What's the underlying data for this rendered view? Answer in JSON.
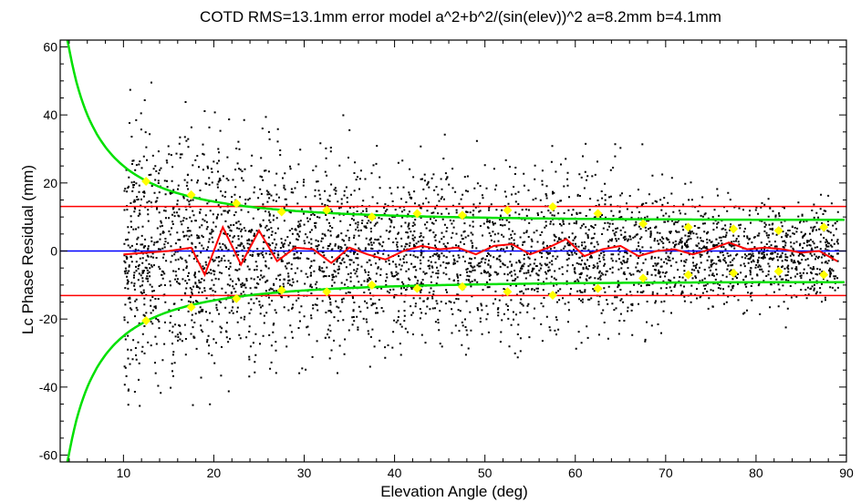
{
  "chart_data": {
    "type": "scatter",
    "title": "COTD RMS=13.1mm error model a^2+b^2/(sin(elev))^2 a=8.2mm b=4.1mm",
    "xlabel": "Elevation Angle (deg)",
    "ylabel": "Lc Phase Residual (mm)",
    "xlim": [
      3,
      90
    ],
    "ylim": [
      -62,
      62
    ],
    "x_ticks": [
      10,
      20,
      30,
      40,
      50,
      60,
      70,
      80,
      90
    ],
    "y_ticks": [
      -60,
      -40,
      -20,
      0,
      20,
      40,
      60
    ],
    "grid": false,
    "rms_mm": 13.1,
    "model": {
      "a_mm": 8.2,
      "b_mm": 4.1
    },
    "colors": {
      "points": "#000000",
      "rms_lines": "#ff0000",
      "zero_line": "#0000ff",
      "envelope": "#00e000",
      "mean_line": "#ff0000",
      "binned_rms": "#ffff00"
    },
    "series": [
      {
        "kind": "horizontal_lines",
        "y": [
          13.1,
          -13.1
        ],
        "color": "#ff0000"
      },
      {
        "kind": "horizontal_line",
        "y": 0,
        "color": "#0000ff"
      },
      {
        "kind": "binned_mean",
        "color": "#ff0000",
        "x": [
          10,
          12.5,
          15,
          17.5,
          19,
          21,
          23,
          25,
          27,
          29,
          31,
          33,
          35,
          37,
          39,
          41,
          43,
          45,
          47,
          49,
          51,
          53,
          55,
          57,
          59,
          61,
          63,
          65,
          67,
          69,
          71,
          73,
          75,
          77,
          79,
          81,
          83,
          85,
          87,
          89
        ],
        "y": [
          -1,
          -0.5,
          0,
          1,
          -7,
          7,
          -4,
          6,
          -3,
          1,
          0.5,
          -3.5,
          1,
          -1,
          -2.5,
          0,
          1.5,
          0.5,
          1,
          -1,
          1.5,
          2,
          -1,
          1,
          3.5,
          -1.5,
          0.5,
          1.5,
          -1.5,
          0,
          0.5,
          -1,
          0.5,
          2.5,
          0.5,
          1,
          0.5,
          -0.5,
          0,
          -3
        ]
      },
      {
        "kind": "binned_rms",
        "color": "#ffff00",
        "x": [
          12.5,
          17.5,
          22.5,
          27.5,
          32.5,
          37.5,
          42.5,
          47.5,
          52.5,
          57.5,
          62.5,
          67.5,
          72.5,
          77.5,
          82.5,
          87.5
        ],
        "y": [
          20.5,
          16.5,
          14,
          11.5,
          12,
          10,
          11,
          10.5,
          12,
          13,
          11,
          8,
          7,
          6.5,
          6,
          7
        ]
      }
    ],
    "scatter": {
      "x_range": [
        10,
        89
      ],
      "y_range": [
        -50,
        50
      ],
      "seed": 7
    }
  }
}
